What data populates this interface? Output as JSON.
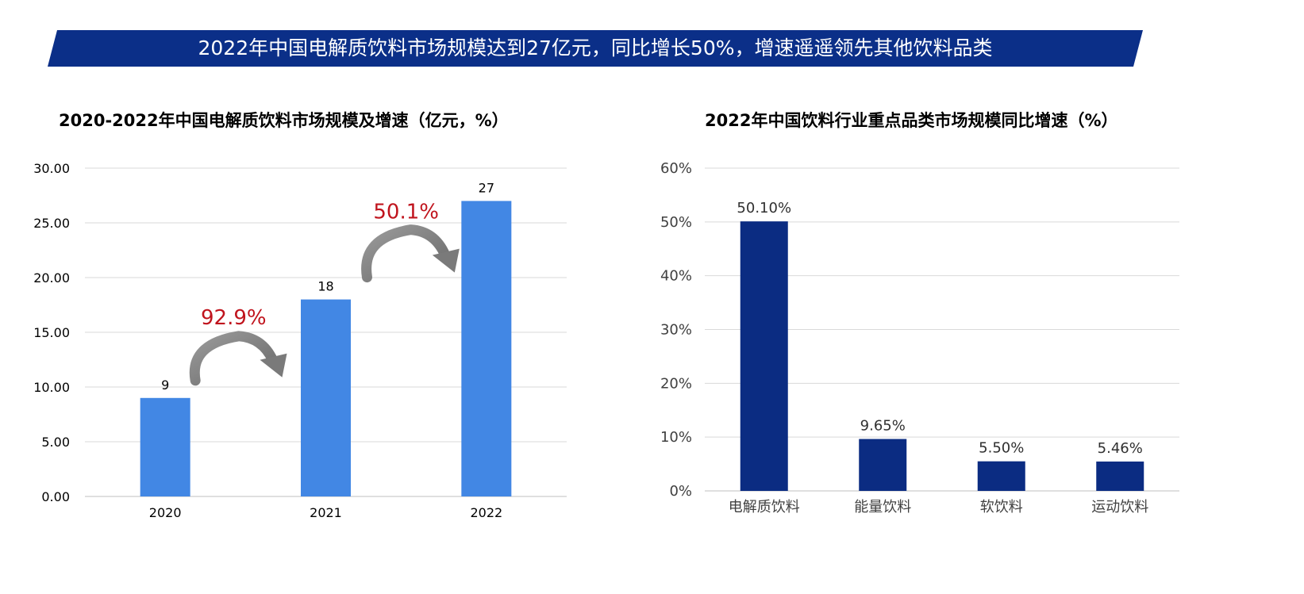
{
  "banner": {
    "text": "2022年中国电解质饮料市场规模达到27亿元，同比增长50%，增速遥遥领先其他饮料品类",
    "color": "#0b2f88"
  },
  "chart_data": [
    {
      "type": "bar",
      "title": "2020-2022年中国电解质饮料市场规模及增速（亿元，%）",
      "categories": [
        "2020",
        "2021",
        "2022"
      ],
      "values": [
        9,
        18,
        27
      ],
      "data_labels": [
        "9",
        "18",
        "27"
      ],
      "ylim": [
        0,
        30
      ],
      "yticks": [
        "0.00",
        "5.00",
        "10.00",
        "15.00",
        "20.00",
        "25.00",
        "30.00"
      ],
      "grid": true,
      "bar_color": "#4287e4",
      "annotations": [
        {
          "text": "92.9%",
          "from": "2020",
          "to": "2021",
          "color": "#c0141d"
        },
        {
          "text": "50.1%",
          "from": "2021",
          "to": "2022",
          "color": "#c0141d"
        }
      ]
    },
    {
      "type": "bar",
      "title": "2022年中国饮料行业重点品类市场规模同比增速（%）",
      "categories": [
        "电解质饮料",
        "能量饮料",
        "软饮料",
        "运动饮料"
      ],
      "values": [
        50.1,
        9.65,
        5.5,
        5.46
      ],
      "data_labels": [
        "50.10%",
        "9.65%",
        "5.50%",
        "5.46%"
      ],
      "ylim": [
        0,
        60
      ],
      "yticks": [
        "0%",
        "10%",
        "20%",
        "30%",
        "40%",
        "50%",
        "60%"
      ],
      "grid": true,
      "bar_color": "#0b2c82"
    }
  ]
}
